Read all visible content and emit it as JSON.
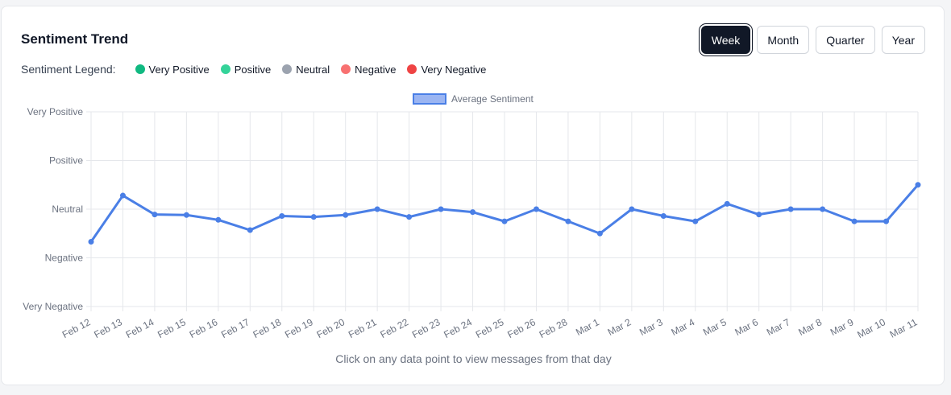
{
  "header": {
    "title": "Sentiment Trend",
    "range_buttons": [
      "Week",
      "Month",
      "Quarter",
      "Year"
    ],
    "active_range": "Week"
  },
  "sentiment_legend": {
    "label": "Sentiment Legend:",
    "items": [
      {
        "label": "Very Positive",
        "color": "#10b981"
      },
      {
        "label": "Positive",
        "color": "#34d399"
      },
      {
        "label": "Neutral",
        "color": "#9ca3af"
      },
      {
        "label": "Negative",
        "color": "#f87171"
      },
      {
        "label": "Very Negative",
        "color": "#ef4444"
      }
    ]
  },
  "footer_note": "Click on any data point to view messages from that day",
  "chart_data": {
    "type": "line",
    "x": [
      "Feb 12",
      "Feb 13",
      "Feb 14",
      "Feb 15",
      "Feb 16",
      "Feb 17",
      "Feb 18",
      "Feb 19",
      "Feb 20",
      "Feb 21",
      "Feb 22",
      "Feb 23",
      "Feb 24",
      "Feb 25",
      "Feb 26",
      "Feb 28",
      "Mar 1",
      "Mar 2",
      "Mar 3",
      "Mar 4",
      "Mar 5",
      "Mar 6",
      "Mar 7",
      "Mar 8",
      "Mar 9",
      "Mar 10",
      "Mar 11"
    ],
    "y_tick_labels": [
      "Very Negative",
      "Negative",
      "Neutral",
      "Positive",
      "Very Positive"
    ],
    "ylim": [
      1,
      5
    ],
    "series": [
      {
        "name": "Average Sentiment",
        "color": "#4a7fe6",
        "values": [
          2.33,
          3.28,
          2.89,
          2.88,
          2.78,
          2.57,
          2.86,
          2.84,
          2.88,
          3.0,
          2.84,
          3.0,
          2.94,
          2.75,
          3.0,
          2.75,
          2.5,
          3.0,
          2.86,
          2.75,
          3.11,
          2.89,
          3.0,
          3.0,
          2.75,
          2.75,
          3.5
        ]
      }
    ],
    "grid": true,
    "legend_position": "top-center"
  }
}
